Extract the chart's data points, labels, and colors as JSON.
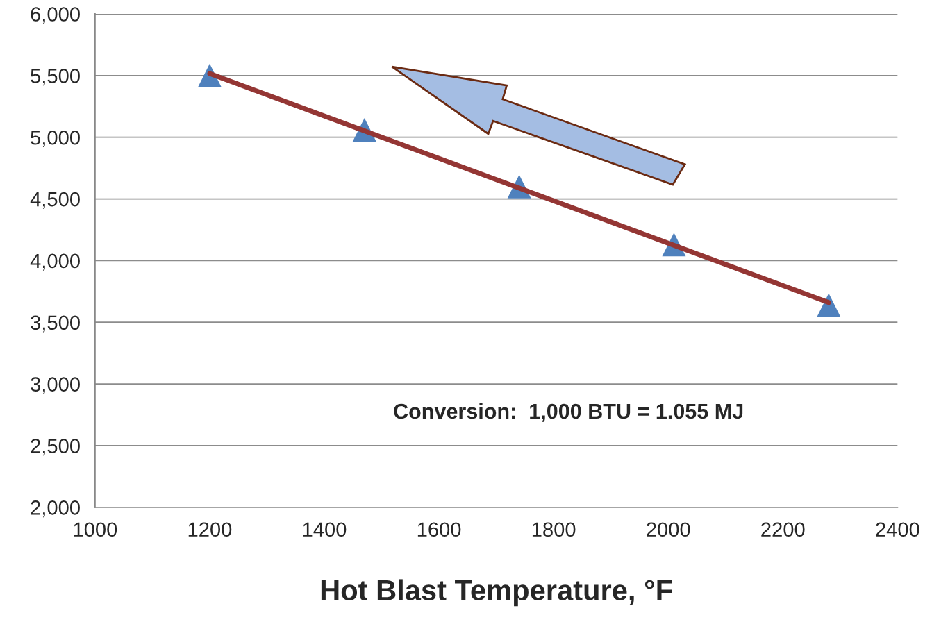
{
  "chart_data": {
    "type": "scatter",
    "xlabel": "Hot Blast Temperature, °F",
    "series": [
      {
        "color": "#4f81bd",
        "marker": "triangle",
        "x": [
          1200,
          1470,
          1740,
          2010,
          2280
        ],
        "values": [
          5500,
          5060,
          4600,
          4130,
          3640
        ]
      },
      {
        "type": "line",
        "color": "#943634",
        "marker": "none",
        "line_style": "solid",
        "x": [
          1200,
          2280
        ],
        "values": [
          5516,
          3660
        ]
      }
    ],
    "xlim": [
      1000,
      2400
    ],
    "xticks": [
      1000,
      1200,
      1400,
      1600,
      1800,
      2000,
      2200,
      2400
    ],
    "ylim": [
      2000,
      6000
    ],
    "yticks": [
      {
        "value": 2000,
        "label": "2,000"
      },
      {
        "value": 2500,
        "label": "2,500"
      },
      {
        "value": 3000,
        "label": "3,000"
      },
      {
        "value": 3500,
        "label": "3,500"
      },
      {
        "value": 4000,
        "label": "4,000"
      },
      {
        "value": 4500,
        "label": "4,500"
      },
      {
        "value": 5000,
        "label": "5,000"
      },
      {
        "value": 5500,
        "label": "5,500"
      },
      {
        "value": 6000,
        "label": "6,000"
      }
    ],
    "grid": "y",
    "legend": false,
    "annotations": [
      "Conversion:  1,000 BTU = 1.055 MJ"
    ]
  }
}
